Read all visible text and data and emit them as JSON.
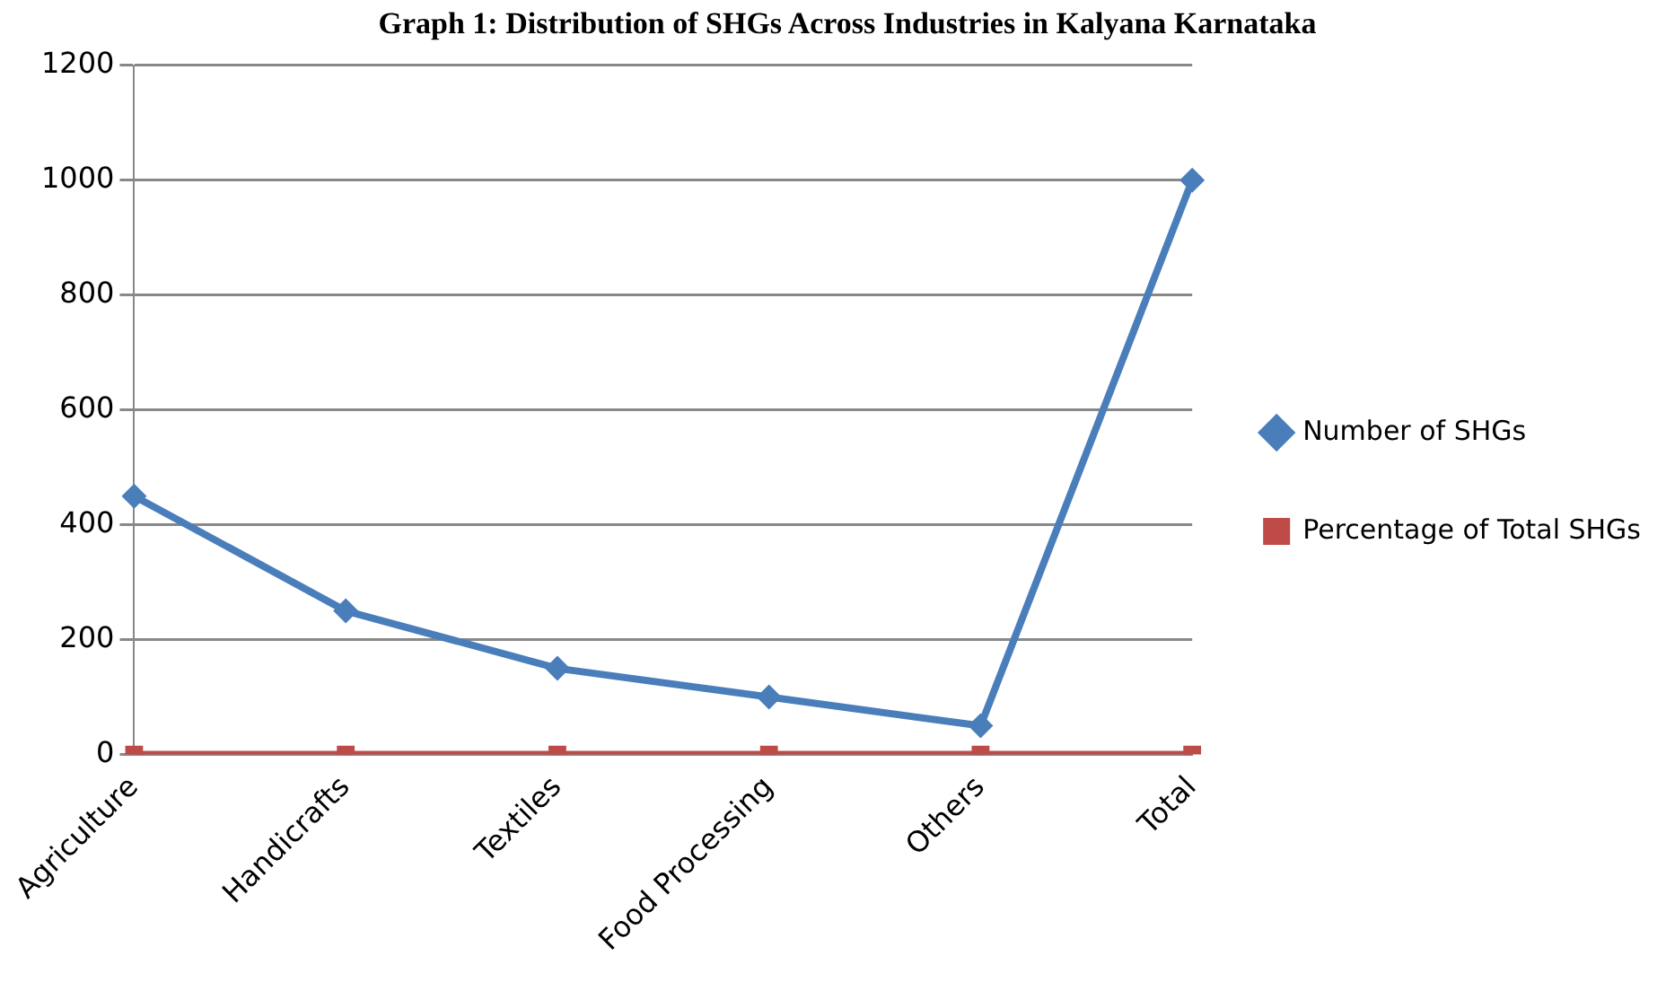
{
  "chart_data": {
    "type": "line",
    "title": "Graph 1: Distribution of SHGs Across Industries in Kalyana Karnataka",
    "categories": [
      "Agriculture",
      "Handicrafts",
      "Textiles",
      "Food Processing",
      "Others",
      "Total"
    ],
    "series": [
      {
        "name": "Number of SHGs",
        "color": "#4a7ebb",
        "values": [
          450,
          250,
          150,
          100,
          50,
          1000
        ],
        "marker": "diamond"
      },
      {
        "name": "Percentage of Total SHGs",
        "color": "#be4b48",
        "values": [
          0,
          0,
          0,
          0,
          0,
          0
        ],
        "marker": "square"
      }
    ],
    "ylim": [
      0,
      1200
    ],
    "yticks": [
      0,
      200,
      400,
      600,
      800,
      1000,
      1200
    ],
    "grid": "y",
    "legend": "right",
    "line_style": "solid"
  }
}
